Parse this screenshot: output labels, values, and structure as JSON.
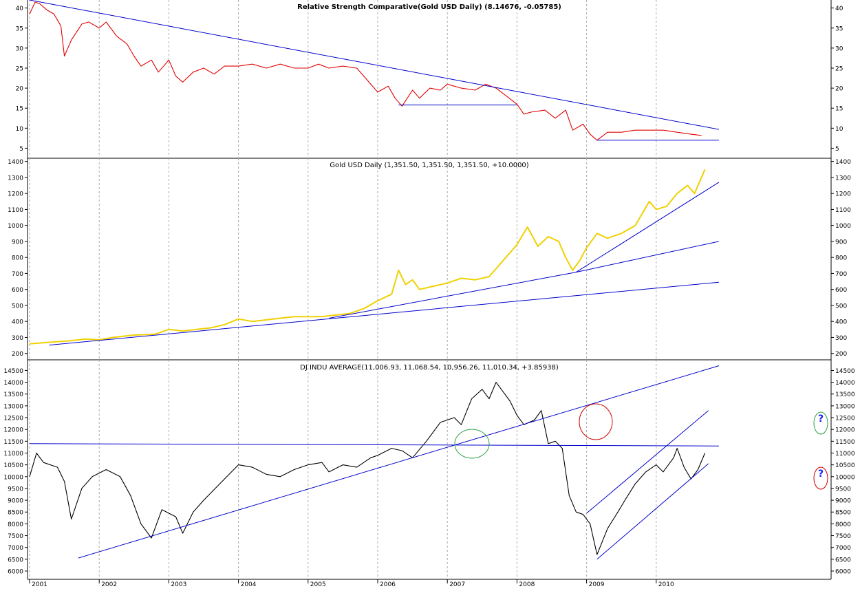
{
  "chart_data": [
    {
      "type": "line",
      "title": "Relative Strength Comparative(Gold USD Daily) (8.14676, -0.05785)",
      "y_ticks": [
        5,
        10,
        15,
        20,
        25,
        30,
        35,
        40
      ],
      "ylim": [
        2.5,
        42
      ],
      "series": [
        {
          "color": "#e00000",
          "points": [
            [
              2001.0,
              38.5
            ],
            [
              2001.08,
              41.5
            ],
            [
              2001.15,
              41
            ],
            [
              2001.25,
              39.5
            ],
            [
              2001.35,
              38.5
            ],
            [
              2001.45,
              35.5
            ],
            [
              2001.5,
              28
            ],
            [
              2001.6,
              32
            ],
            [
              2001.75,
              36
            ],
            [
              2001.85,
              36.5
            ],
            [
              2002.0,
              35
            ],
            [
              2002.1,
              36.5
            ],
            [
              2002.25,
              33
            ],
            [
              2002.4,
              31
            ],
            [
              2002.5,
              28
            ],
            [
              2002.6,
              25.5
            ],
            [
              2002.75,
              27
            ],
            [
              2002.85,
              24
            ],
            [
              2003.0,
              27
            ],
            [
              2003.1,
              23
            ],
            [
              2003.2,
              21.5
            ],
            [
              2003.35,
              24
            ],
            [
              2003.5,
              25
            ],
            [
              2003.65,
              23.5
            ],
            [
              2003.8,
              25.5
            ],
            [
              2004.0,
              25.5
            ],
            [
              2004.2,
              26
            ],
            [
              2004.4,
              25
            ],
            [
              2004.6,
              26
            ],
            [
              2004.8,
              25
            ],
            [
              2005.0,
              25
            ],
            [
              2005.15,
              26
            ],
            [
              2005.3,
              25
            ],
            [
              2005.5,
              25.5
            ],
            [
              2005.7,
              25
            ],
            [
              2005.85,
              22
            ],
            [
              2006.0,
              19
            ],
            [
              2006.15,
              20.5
            ],
            [
              2006.25,
              17.5
            ],
            [
              2006.35,
              15.5
            ],
            [
              2006.5,
              19.5
            ],
            [
              2006.6,
              17.5
            ],
            [
              2006.75,
              20
            ],
            [
              2006.9,
              19.5
            ],
            [
              2007.0,
              21
            ],
            [
              2007.2,
              20
            ],
            [
              2007.4,
              19.5
            ],
            [
              2007.55,
              21
            ],
            [
              2007.7,
              20
            ],
            [
              2007.85,
              18
            ],
            [
              2008.0,
              16
            ],
            [
              2008.1,
              13.5
            ],
            [
              2008.2,
              14
            ],
            [
              2008.4,
              14.5
            ],
            [
              2008.55,
              12.5
            ],
            [
              2008.7,
              14.5
            ],
            [
              2008.8,
              9.5
            ],
            [
              2008.95,
              11
            ],
            [
              2009.05,
              8.5
            ],
            [
              2009.15,
              7
            ],
            [
              2009.3,
              9
            ],
            [
              2009.5,
              9
            ],
            [
              2009.7,
              9.5
            ],
            [
              2009.9,
              9.5
            ],
            [
              2010.1,
              9.5
            ],
            [
              2010.3,
              9
            ],
            [
              2010.5,
              8.5
            ],
            [
              2010.65,
              8.2
            ]
          ]
        },
        {
          "color": "#0000cc",
          "points": [
            [
              2001.0,
              42
            ],
            [
              2010.9,
              9.7
            ]
          ]
        },
        {
          "color": "#0000cc",
          "points": [
            [
              2006.3,
              15.8
            ],
            [
              2008.0,
              15.8
            ]
          ]
        },
        {
          "color": "#0000cc",
          "points": [
            [
              2009.15,
              7
            ],
            [
              2010.9,
              7
            ]
          ]
        }
      ]
    },
    {
      "type": "line",
      "title": "Gold USD Daily (1,351.50, 1,351.50, 1,351.50, +10.0000)",
      "y_ticks": [
        200,
        300,
        400,
        500,
        600,
        700,
        800,
        900,
        1000,
        1100,
        1200,
        1300,
        1400
      ],
      "ylim": [
        160,
        1420
      ],
      "series": [
        {
          "color": "#f0d000",
          "points": [
            [
              2001.0,
              260
            ],
            [
              2001.3,
              270
            ],
            [
              2001.6,
              280
            ],
            [
              2001.8,
              290
            ],
            [
              2002.0,
              285
            ],
            [
              2002.2,
              300
            ],
            [
              2002.5,
              315
            ],
            [
              2002.8,
              320
            ],
            [
              2003.0,
              350
            ],
            [
              2003.2,
              340
            ],
            [
              2003.4,
              350
            ],
            [
              2003.6,
              360
            ],
            [
              2003.8,
              380
            ],
            [
              2004.0,
              415
            ],
            [
              2004.2,
              400
            ],
            [
              2004.4,
              410
            ],
            [
              2004.6,
              420
            ],
            [
              2004.8,
              430
            ],
            [
              2005.0,
              430
            ],
            [
              2005.2,
              430
            ],
            [
              2005.4,
              440
            ],
            [
              2005.6,
              450
            ],
            [
              2005.8,
              480
            ],
            [
              2006.0,
              530
            ],
            [
              2006.2,
              570
            ],
            [
              2006.3,
              720
            ],
            [
              2006.4,
              630
            ],
            [
              2006.5,
              660
            ],
            [
              2006.6,
              600
            ],
            [
              2006.8,
              620
            ],
            [
              2007.0,
              640
            ],
            [
              2007.2,
              670
            ],
            [
              2007.4,
              660
            ],
            [
              2007.6,
              680
            ],
            [
              2007.8,
              780
            ],
            [
              2008.0,
              880
            ],
            [
              2008.15,
              990
            ],
            [
              2008.3,
              870
            ],
            [
              2008.45,
              930
            ],
            [
              2008.6,
              900
            ],
            [
              2008.7,
              800
            ],
            [
              2008.8,
              720
            ],
            [
              2008.9,
              780
            ],
            [
              2009.0,
              860
            ],
            [
              2009.15,
              950
            ],
            [
              2009.3,
              920
            ],
            [
              2009.5,
              950
            ],
            [
              2009.7,
              1000
            ],
            [
              2009.9,
              1150
            ],
            [
              2010.0,
              1100
            ],
            [
              2010.15,
              1120
            ],
            [
              2010.3,
              1200
            ],
            [
              2010.45,
              1250
            ],
            [
              2010.55,
              1200
            ],
            [
              2010.7,
              1350
            ]
          ]
        },
        {
          "color": "#0000cc",
          "points": [
            [
              2001.28,
              252
            ],
            [
              2010.9,
              645
            ]
          ]
        },
        {
          "color": "#0000cc",
          "points": [
            [
              2005.3,
              420
            ],
            [
              2008.85,
              708
            ],
            [
              2010.9,
              900
            ]
          ]
        },
        {
          "color": "#0000cc",
          "points": [
            [
              2008.85,
              708
            ],
            [
              2010.9,
              1270
            ]
          ]
        }
      ]
    },
    {
      "type": "line",
      "title": "DJ INDU AVERAGE(11,006.93, 11,068.54, 10,956.26, 11,010.34, +3.85938)",
      "x_ticks": [
        "2001",
        "2002",
        "2003",
        "2004",
        "2005",
        "2006",
        "2007",
        "2008",
        "2009",
        "2010"
      ],
      "y_ticks": [
        6000,
        6500,
        7000,
        7500,
        8000,
        8500,
        9000,
        9500,
        10000,
        10500,
        11000,
        11500,
        12000,
        12500,
        13000,
        13500,
        14000,
        14500
      ],
      "ylim": [
        5650,
        14950
      ],
      "series": [
        {
          "color": "#000000",
          "points": [
            [
              2001.0,
              10000
            ],
            [
              2001.1,
              11000
            ],
            [
              2001.2,
              10600
            ],
            [
              2001.4,
              10400
            ],
            [
              2001.5,
              9800
            ],
            [
              2001.6,
              8200
            ],
            [
              2001.75,
              9500
            ],
            [
              2001.9,
              10000
            ],
            [
              2002.1,
              10300
            ],
            [
              2002.3,
              10000
            ],
            [
              2002.45,
              9200
            ],
            [
              2002.6,
              8000
            ],
            [
              2002.75,
              7400
            ],
            [
              2002.9,
              8600
            ],
            [
              2003.1,
              8300
            ],
            [
              2003.2,
              7600
            ],
            [
              2003.35,
              8500
            ],
            [
              2003.5,
              9000
            ],
            [
              2003.7,
              9600
            ],
            [
              2003.9,
              10200
            ],
            [
              2004.0,
              10500
            ],
            [
              2004.2,
              10400
            ],
            [
              2004.4,
              10100
            ],
            [
              2004.6,
              10000
            ],
            [
              2004.8,
              10300
            ],
            [
              2005.0,
              10500
            ],
            [
              2005.2,
              10600
            ],
            [
              2005.3,
              10200
            ],
            [
              2005.5,
              10500
            ],
            [
              2005.7,
              10400
            ],
            [
              2005.9,
              10800
            ],
            [
              2006.0,
              10900
            ],
            [
              2006.2,
              11200
            ],
            [
              2006.35,
              11100
            ],
            [
              2006.5,
              10800
            ],
            [
              2006.7,
              11500
            ],
            [
              2006.9,
              12300
            ],
            [
              2007.1,
              12500
            ],
            [
              2007.2,
              12200
            ],
            [
              2007.35,
              13300
            ],
            [
              2007.5,
              13700
            ],
            [
              2007.6,
              13300
            ],
            [
              2007.7,
              14000
            ],
            [
              2007.8,
              13600
            ],
            [
              2007.9,
              13200
            ],
            [
              2008.0,
              12600
            ],
            [
              2008.1,
              12200
            ],
            [
              2008.25,
              12400
            ],
            [
              2008.35,
              12800
            ],
            [
              2008.45,
              11400
            ],
            [
              2008.55,
              11500
            ],
            [
              2008.65,
              11200
            ],
            [
              2008.75,
              9200
            ],
            [
              2008.85,
              8500
            ],
            [
              2008.95,
              8400
            ],
            [
              2009.05,
              8000
            ],
            [
              2009.15,
              6700
            ],
            [
              2009.3,
              7800
            ],
            [
              2009.45,
              8500
            ],
            [
              2009.55,
              9000
            ],
            [
              2009.7,
              9700
            ],
            [
              2009.85,
              10200
            ],
            [
              2010.0,
              10500
            ],
            [
              2010.1,
              10200
            ],
            [
              2010.25,
              10800
            ],
            [
              2010.3,
              11200
            ],
            [
              2010.4,
              10400
            ],
            [
              2010.5,
              9900
            ],
            [
              2010.6,
              10300
            ],
            [
              2010.7,
              11000
            ]
          ]
        },
        {
          "color": "#0000cc",
          "points": [
            [
              2001.0,
              11400
            ],
            [
              2010.9,
              11300
            ]
          ]
        },
        {
          "color": "#0000cc",
          "points": [
            [
              2001.7,
              6550
            ],
            [
              2010.9,
              14700
            ]
          ]
        },
        {
          "color": "#0000cc",
          "points": [
            [
              2009.0,
              8450
            ],
            [
              2010.75,
              12800
            ]
          ]
        },
        {
          "color": "#0000cc",
          "points": [
            [
              2009.15,
              6500
            ],
            [
              2010.75,
              10550
            ]
          ]
        }
      ]
    }
  ],
  "annotations": {
    "question_mark": "?"
  },
  "colors": {
    "grid": "#aaaaaa",
    "axis": "#000000",
    "trendline": "#0000cc"
  }
}
